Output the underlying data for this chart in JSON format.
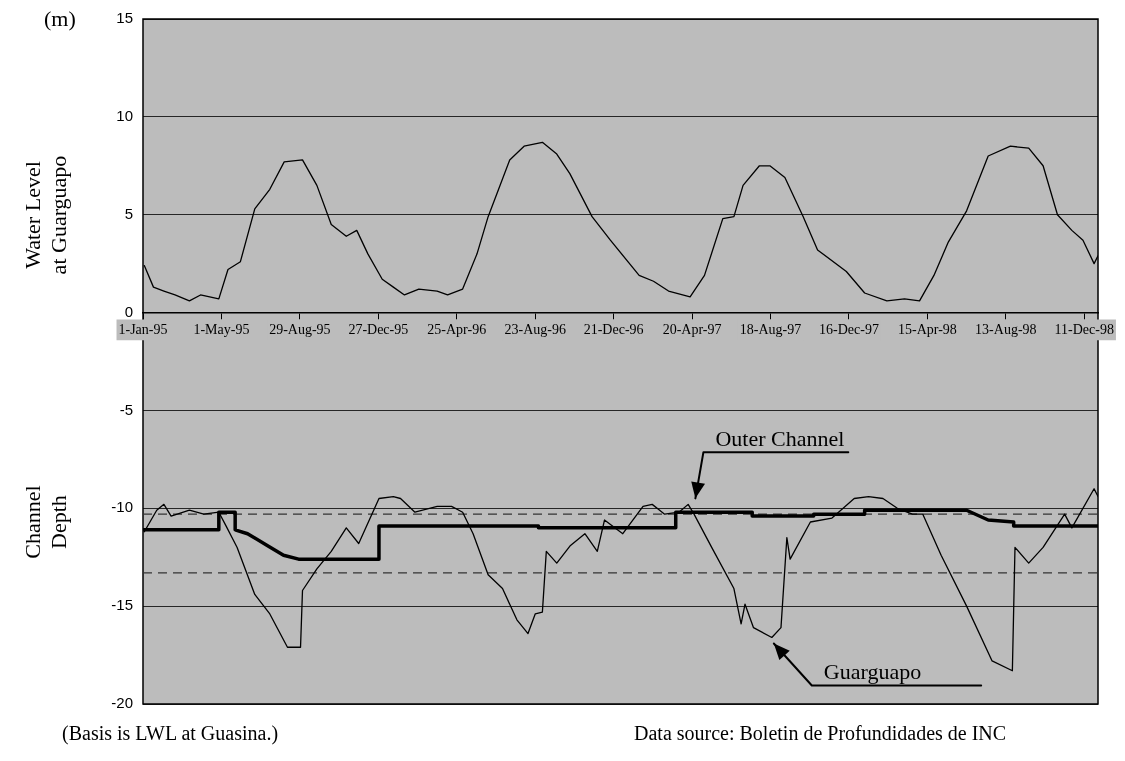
{
  "chart_data": {
    "type": "line",
    "ylabel": "(m)",
    "xlim": [
      "1995-01-01",
      "1999-01-01"
    ],
    "xticks": [
      {
        "value": "1995-01-01",
        "label": "1-Jan-95"
      },
      {
        "value": "1995-05-01",
        "label": "1-May-95"
      },
      {
        "value": "1995-08-29",
        "label": "29-Aug-95"
      },
      {
        "value": "1995-12-27",
        "label": "27-Dec-95"
      },
      {
        "value": "1996-04-25",
        "label": "25-Apr-96"
      },
      {
        "value": "1996-08-23",
        "label": "23-Aug-96"
      },
      {
        "value": "1996-12-21",
        "label": "21-Dec-96"
      },
      {
        "value": "1997-04-20",
        "label": "20-Apr-97"
      },
      {
        "value": "1997-08-18",
        "label": "18-Aug-97"
      },
      {
        "value": "1997-12-16",
        "label": "16-Dec-97"
      },
      {
        "value": "1998-04-15",
        "label": "15-Apr-98"
      },
      {
        "value": "1998-08-13",
        "label": "13-Aug-98"
      },
      {
        "value": "1998-12-11",
        "label": "11-Dec-98"
      }
    ],
    "ylim": [
      -20,
      15
    ],
    "yticks": [
      -20,
      -15,
      -10,
      -5,
      0,
      5,
      10,
      15
    ],
    "grid": "y",
    "legend": false,
    "marker": "none",
    "line_style": "solid",
    "series": [
      {
        "color": "#000000",
        "x": [
          "1995-01-03",
          "1995-01-17",
          "1995-02-02",
          "1995-02-19",
          "1995-03-13",
          "1995-03-30",
          "1995-04-27",
          "1995-05-11",
          "1995-05-30",
          "1995-06-21",
          "1995-07-14",
          "1995-08-05",
          "1995-09-02",
          "1995-09-24",
          "1995-10-16",
          "1995-11-08",
          "1995-11-24",
          "1995-12-11",
          "1996-01-02",
          "1996-01-19",
          "1996-02-05",
          "1996-02-27",
          "1996-03-26",
          "1996-04-11",
          "1996-05-04",
          "1996-05-26",
          "1996-06-12",
          "1996-06-28",
          "1996-07-15",
          "1996-08-06",
          "1996-09-03",
          "1996-09-25",
          "1996-10-15",
          "1996-11-18",
          "1996-12-16",
          "1997-01-29",
          "1997-02-20",
          "1997-03-15",
          "1997-04-17",
          "1997-05-09",
          "1997-06-06",
          "1997-06-23",
          "1997-07-07",
          "1997-08-01",
          "1997-08-17",
          "1997-09-09",
          "1997-10-07",
          "1997-10-29",
          "1997-12-12",
          "1998-01-09",
          "1998-02-12",
          "1998-03-11",
          "1998-04-03",
          "1998-04-25",
          "1998-05-17",
          "1998-06-14",
          "1998-07-17",
          "1998-08-20",
          "1998-09-17",
          "1998-10-09",
          "1998-10-31",
          "1998-11-22",
          "1998-12-09",
          "1998-12-26",
          "1999-01-01"
        ],
        "values": [
          2.4,
          1.3,
          1.1,
          0.9,
          0.6,
          0.9,
          0.7,
          2.2,
          2.6,
          5.3,
          6.3,
          7.7,
          7.8,
          6.5,
          4.5,
          3.9,
          4.2,
          3.0,
          1.7,
          1.3,
          0.9,
          1.2,
          1.1,
          0.9,
          1.2,
          3.0,
          4.9,
          6.3,
          7.8,
          8.5,
          8.7,
          8.1,
          7.1,
          4.9,
          3.7,
          1.9,
          1.6,
          1.1,
          0.8,
          1.9,
          4.8,
          4.9,
          6.5,
          7.5,
          7.5,
          6.9,
          4.9,
          3.2,
          2.1,
          1.0,
          0.6,
          0.7,
          0.6,
          1.9,
          3.6,
          5.2,
          8.0,
          8.5,
          8.4,
          7.5,
          5.0,
          4.2,
          3.7,
          2.5,
          2.9
        ]
      },
      {
        "color": "#000000",
        "x": [
          "1995-01-03",
          "1995-01-22",
          "1995-02-02",
          "1995-02-13",
          "1995-03-13",
          "1995-04-04",
          "1995-04-27",
          "1995-05-08",
          "1995-05-25",
          "1995-06-21",
          "1995-07-14",
          "1995-08-10",
          "1995-08-30",
          "1995-09-02",
          "1995-09-24",
          "1995-10-16",
          "1995-11-08",
          "1995-11-27",
          "1995-12-28",
          "1996-01-19",
          "1996-01-30",
          "1996-02-21",
          "1996-03-26",
          "1996-04-17",
          "1996-05-04",
          "1996-05-20",
          "1996-06-12",
          "1996-07-04",
          "1996-07-26",
          "1996-08-12",
          "1996-08-23",
          "1996-09-03",
          "1996-09-09",
          "1996-09-25",
          "1996-10-16",
          "1996-11-07",
          "1996-11-26",
          "1996-12-07",
          "1997-01-04",
          "1997-02-04",
          "1997-02-18",
          "1997-03-09",
          "1997-03-31",
          "1997-04-14",
          "1997-04-23",
          "1997-05-20",
          "1997-06-23",
          "1997-07-04",
          "1997-07-10",
          "1997-07-23",
          "1997-08-20",
          "1997-09-03",
          "1997-09-12",
          "1997-09-17",
          "1997-10-18",
          "1997-11-20",
          "1997-12-24",
          "1998-01-15",
          "1998-02-06",
          "1998-02-28",
          "1998-03-23",
          "1998-04-08",
          "1998-05-06",
          "1998-06-14",
          "1998-07-23",
          "1998-08-23",
          "1998-08-27",
          "1998-09-17",
          "1998-10-09",
          "1998-11-11",
          "1998-11-22",
          "1998-12-26",
          "1999-01-01"
        ],
        "values": [
          -11.2,
          -10.1,
          -9.8,
          -10.4,
          -10.1,
          -10.3,
          -10.2,
          -10.9,
          -12.0,
          -14.4,
          -15.4,
          -17.1,
          -17.1,
          -14.2,
          -13.1,
          -12.2,
          -11.0,
          -11.8,
          -9.5,
          -9.4,
          -9.5,
          -10.2,
          -9.9,
          -9.9,
          -10.2,
          -11.3,
          -13.4,
          -14.1,
          -15.7,
          -16.4,
          -15.4,
          -15.3,
          -12.2,
          -12.8,
          -11.9,
          -11.3,
          -12.2,
          -10.6,
          -11.3,
          -9.9,
          -9.8,
          -10.3,
          -10.2,
          -9.8,
          -10.3,
          -12.0,
          -14.1,
          -15.9,
          -14.9,
          -16.1,
          -16.6,
          -16.1,
          -11.5,
          -12.6,
          -10.7,
          -10.5,
          -9.5,
          -9.4,
          -9.5,
          -10.0,
          -10.3,
          -10.3,
          -12.4,
          -15.0,
          -17.8,
          -18.3,
          -12.0,
          -12.8,
          -12.0,
          -10.3,
          -11.0,
          -9.0,
          -9.4
        ]
      },
      {
        "color": "#000000",
        "x": [
          "1995-01-01",
          "1995-04-27",
          "1995-04-27",
          "1995-05-22",
          "1995-05-22",
          "1995-06-10",
          "1995-07-10",
          "1995-08-04",
          "1995-08-27",
          "1995-12-28",
          "1995-12-28",
          "1996-08-28",
          "1996-08-28",
          "1997-03-26",
          "1997-03-26",
          "1997-07-21",
          "1997-07-21",
          "1997-10-23",
          "1997-10-23",
          "1998-01-09",
          "1998-01-09",
          "1998-06-14",
          "1998-07-17",
          "1998-08-25",
          "1998-08-25",
          "1999-01-01"
        ],
        "values": [
          -11.1,
          -11.1,
          -10.2,
          -10.2,
          -11.1,
          -11.3,
          -11.9,
          -12.4,
          -12.6,
          -12.6,
          -10.9,
          -10.9,
          -11.0,
          -11.0,
          -10.2,
          -10.2,
          -10.4,
          -10.4,
          -10.3,
          -10.3,
          -10.1,
          -10.1,
          -10.6,
          -10.7,
          -10.9,
          -10.9
        ]
      }
    ],
    "ref_lines": [
      {
        "axis": "y",
        "value": -10.3,
        "color": "#333333",
        "line_style": "dashed"
      },
      {
        "axis": "y",
        "value": -13.3,
        "color": "#333333",
        "line_style": "dashed"
      }
    ],
    "annotations": [
      {
        "text": "Outer Channel",
        "x": "1997-04-22",
        "y": -9.8
      },
      {
        "text": "Guarguapo",
        "x": "1997-08-20",
        "y": -16.6
      },
      "Water Level at Guarguapo",
      "Channel Depth",
      "(Basis is LWL at Guasina.)",
      "Data source:  Boletin de Profundidades de INC"
    ]
  }
}
